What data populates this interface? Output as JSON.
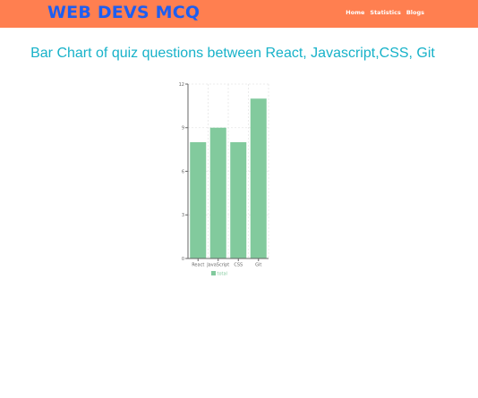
{
  "navbar": {
    "brand": "WEB DEVS MCQ",
    "links": [
      {
        "label": "Home"
      },
      {
        "label": "Statistics"
      },
      {
        "label": "Blogs"
      }
    ]
  },
  "page": {
    "title": "Bar Chart of quiz questions between React, Javascript,CSS, Git"
  },
  "colors": {
    "navbar_bg": "#FF7F50",
    "brand": "#1E5EF0",
    "title": "#17B2C9",
    "bar": "#82CA9D"
  },
  "chart_data": {
    "type": "bar",
    "categories": [
      "React",
      "JavaScript",
      "CSS",
      "Git"
    ],
    "series": [
      {
        "name": "total",
        "values": [
          8,
          9,
          8,
          11
        ]
      }
    ],
    "ylim": [
      0,
      12
    ],
    "yticks": [
      0,
      3,
      6,
      9,
      12
    ],
    "grid": true,
    "legend": "bottom"
  }
}
